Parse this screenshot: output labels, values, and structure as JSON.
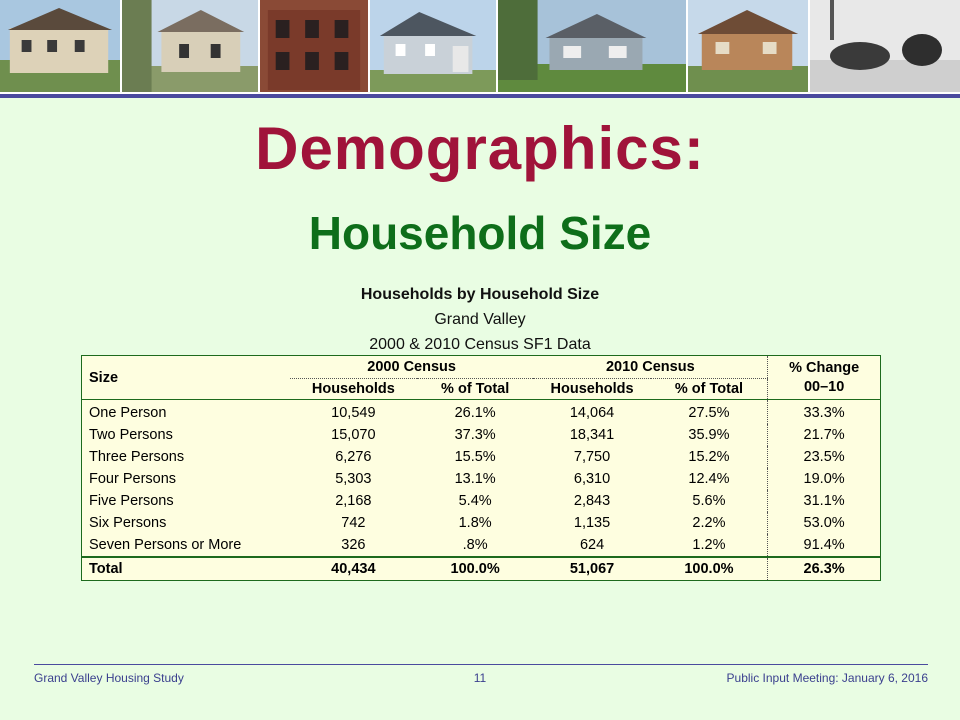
{
  "title": "Demographics:",
  "subtitle": "Household Size",
  "caption": {
    "line1": "Households by Household Size",
    "line2": "Grand Valley",
    "line3": "2000 & 2010 Census SF1 Data"
  },
  "table": {
    "size_header": "Size",
    "group_2000": "2000 Census",
    "group_2010": "2010 Census",
    "change_header_1": "% Change",
    "change_header_2": "00–10",
    "sub_households": "Households",
    "sub_pct": "% of Total",
    "rows": [
      {
        "size": "One Person",
        "h2000": "10,549",
        "p2000": "26.1%",
        "h2010": "14,064",
        "p2010": "27.5%",
        "change": "33.3%"
      },
      {
        "size": "Two Persons",
        "h2000": "15,070",
        "p2000": "37.3%",
        "h2010": "18,341",
        "p2010": "35.9%",
        "change": "21.7%"
      },
      {
        "size": "Three Persons",
        "h2000": "6,276",
        "p2000": "15.5%",
        "h2010": "7,750",
        "p2010": "15.2%",
        "change": "23.5%"
      },
      {
        "size": "Four Persons",
        "h2000": "5,303",
        "p2000": "13.1%",
        "h2010": "6,310",
        "p2010": "12.4%",
        "change": "19.0%"
      },
      {
        "size": "Five Persons",
        "h2000": "2,168",
        "p2000": "5.4%",
        "h2010": "2,843",
        "p2010": "5.6%",
        "change": "31.1%"
      },
      {
        "size": "Six Persons",
        "h2000": "742",
        "p2000": "1.8%",
        "h2010": "1,135",
        "p2010": "2.2%",
        "change": "53.0%"
      },
      {
        "size": "Seven Persons or More",
        "h2000": "326",
        "p2000": ".8%",
        "h2010": "624",
        "p2010": "1.2%",
        "change": "91.4%"
      }
    ],
    "total": {
      "size": "Total",
      "h2000": "40,434",
      "p2000": "100.0%",
      "h2010": "51,067",
      "p2010": "100.0%",
      "change": "26.3%"
    }
  },
  "footer": {
    "left": "Grand Valley Housing Study",
    "page": "11",
    "right": "Public Input Meeting: January 6, 2016"
  },
  "colors": {
    "background": "#e9fde3",
    "title": "#a0133a",
    "subtitle": "#0e6e1a",
    "table_bg": "#fefee0",
    "table_border": "#1d6a1d",
    "footer": "#3a3f8e"
  }
}
